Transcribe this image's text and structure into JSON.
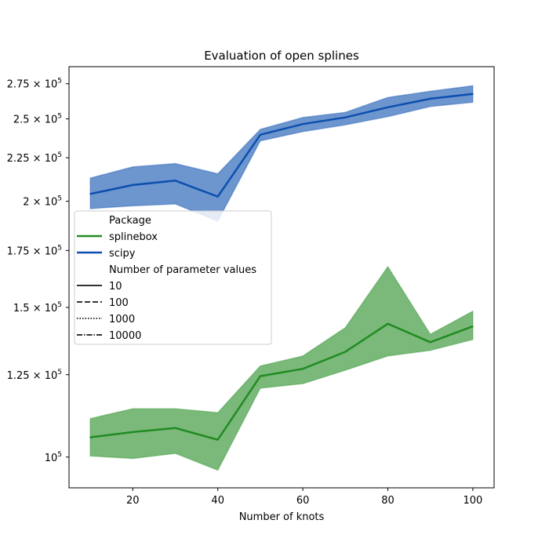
{
  "chart_data": {
    "type": "line",
    "title": "Evaluation of open splines",
    "xlabel": "Number of knots",
    "ylabel": "",
    "xlim": [
      5,
      105
    ],
    "ylim": [
      92000,
      288000
    ],
    "y_scale": "log",
    "x_ticks": [
      20,
      40,
      60,
      80,
      100
    ],
    "y_ticks": [
      {
        "value": 100000,
        "base": "10",
        "exp": "5"
      },
      {
        "value": 125000,
        "base": "1.25 × 10",
        "exp": "5"
      },
      {
        "value": 150000,
        "base": "1.5 × 10",
        "exp": "5"
      },
      {
        "value": 175000,
        "base": "1.75 × 10",
        "exp": "5"
      },
      {
        "value": 200000,
        "base": "2 × 10",
        "exp": "5"
      },
      {
        "value": 225000,
        "base": "2.25 × 10",
        "exp": "5"
      },
      {
        "value": 250000,
        "base": "2.5 × 10",
        "exp": "5"
      },
      {
        "value": 275000,
        "base": "2.75 × 10",
        "exp": "5"
      }
    ],
    "x": [
      10,
      20,
      30,
      40,
      50,
      60,
      70,
      80,
      90,
      100
    ],
    "series": [
      {
        "name": "splinebox",
        "color": "#228b22",
        "values": [
          105500,
          107000,
          108200,
          104800,
          124500,
          127000,
          133000,
          143500,
          136500,
          142500
        ],
        "lower": [
          100300,
          99600,
          101000,
          96500,
          120500,
          122000,
          126500,
          131500,
          133500,
          137500
        ],
        "upper": [
          111000,
          114000,
          114000,
          112800,
          128000,
          131500,
          142000,
          167500,
          139500,
          148500
        ]
      },
      {
        "name": "scipy",
        "color": "#0c4fae",
        "values": [
          204000,
          209000,
          211500,
          202500,
          239500,
          246500,
          251000,
          258000,
          264000,
          267500
        ],
        "lower": [
          196000,
          197500,
          198500,
          189500,
          235500,
          241500,
          246000,
          251500,
          258500,
          261500
        ],
        "upper": [
          213000,
          219500,
          221500,
          215500,
          243000,
          251000,
          254500,
          265000,
          269500,
          273500
        ]
      }
    ],
    "legend": {
      "placement": "center-left",
      "title_package": "Package",
      "packages": [
        {
          "label": "splinebox",
          "color": "#228b22"
        },
        {
          "label": "scipy",
          "color": "#0c4fae"
        }
      ],
      "title_params": "Number of parameter values",
      "param_values": [
        {
          "label": "10",
          "dash": "solid"
        },
        {
          "label": "100",
          "dash": "dashed"
        },
        {
          "label": "1000",
          "dash": "dotted"
        },
        {
          "label": "10000",
          "dash": "dashdot"
        }
      ]
    }
  }
}
